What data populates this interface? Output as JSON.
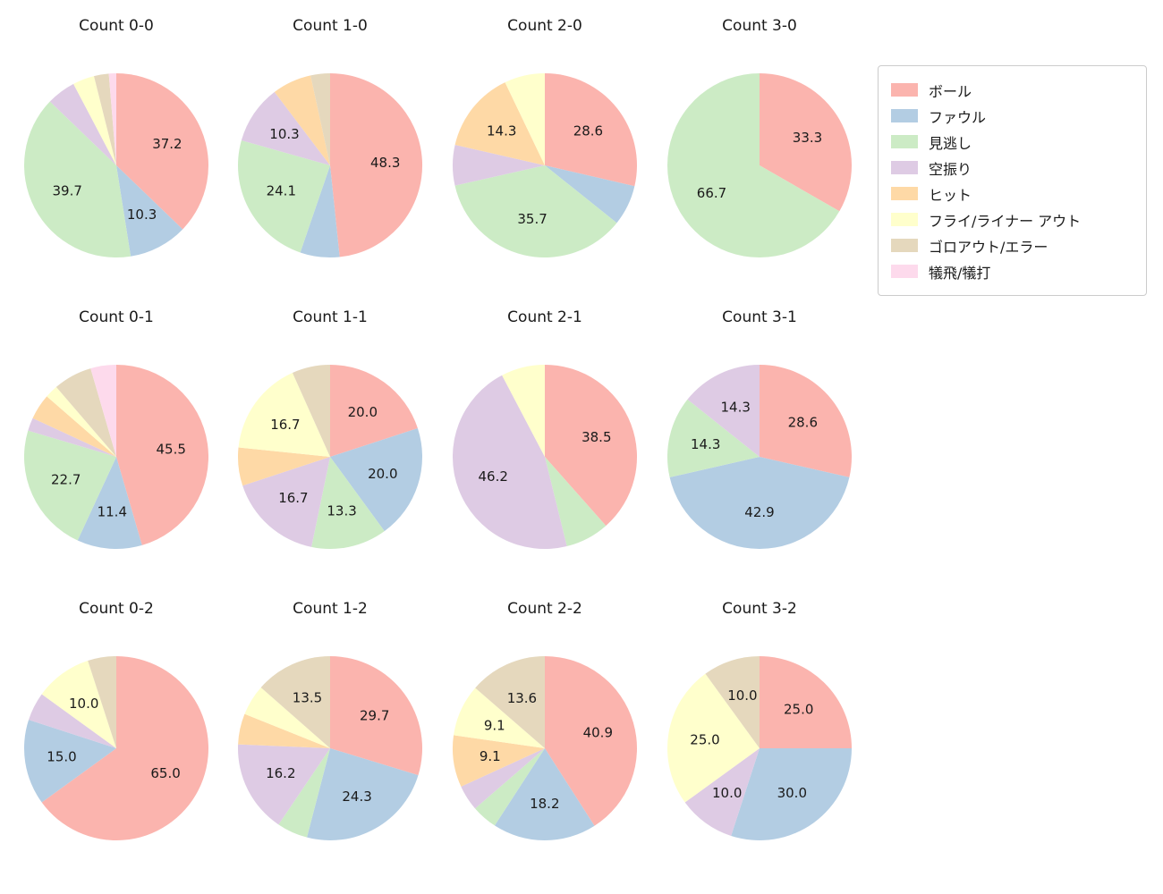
{
  "page": {
    "background": "#ffffff",
    "text_color": "#1a1a1a"
  },
  "legend": {
    "position": "top-right",
    "items": [
      {
        "label": "ボール",
        "color": "#fbb4ae"
      },
      {
        "label": "ファウル",
        "color": "#b3cde3"
      },
      {
        "label": "見逃し",
        "color": "#ccebc5"
      },
      {
        "label": "空振り",
        "color": "#decbe4"
      },
      {
        "label": "ヒット",
        "color": "#fed9a6"
      },
      {
        "label": "フライ/ライナー アウト",
        "color": "#ffffcc"
      },
      {
        "label": "ゴロアウト/エラー",
        "color": "#e5d8bd"
      },
      {
        "label": "犠飛/犠打",
        "color": "#fddaec"
      }
    ]
  },
  "chart_data": {
    "type": "pie",
    "grid": {
      "rows": 3,
      "cols": 4
    },
    "start_angle": "12-o-clock",
    "direction": "clockwise",
    "unit": "percent",
    "percent_label_min": 9,
    "percent_label_decimals": 1,
    "categories": [
      "ボール",
      "ファウル",
      "見逃し",
      "空振り",
      "ヒット",
      "フライ/ライナー アウト",
      "ゴロアウト/エラー",
      "犠飛/犠打"
    ],
    "colors": [
      "#fbb4ae",
      "#b3cde3",
      "#ccebc5",
      "#decbe4",
      "#fed9a6",
      "#ffffcc",
      "#e5d8bd",
      "#fddaec"
    ],
    "charts": [
      {
        "title": "Count 0-0",
        "values": [
          37.2,
          10.3,
          39.7,
          5.1,
          0,
          3.8,
          2.6,
          1.3
        ]
      },
      {
        "title": "Count 1-0",
        "values": [
          48.3,
          6.9,
          24.1,
          10.3,
          6.9,
          0,
          3.4,
          0
        ]
      },
      {
        "title": "Count 2-0",
        "values": [
          28.6,
          7.1,
          35.7,
          7.1,
          14.3,
          7.1,
          0,
          0
        ]
      },
      {
        "title": "Count 3-0",
        "values": [
          33.3,
          0,
          66.7,
          0,
          0,
          0,
          0,
          0
        ]
      },
      {
        "title": "Count 0-1",
        "values": [
          45.5,
          11.4,
          22.7,
          2.3,
          4.5,
          2.3,
          6.8,
          4.5
        ]
      },
      {
        "title": "Count 1-1",
        "values": [
          20.0,
          20.0,
          13.3,
          16.7,
          6.7,
          16.7,
          6.7,
          0
        ]
      },
      {
        "title": "Count 2-1",
        "values": [
          38.5,
          0,
          7.7,
          46.2,
          0,
          7.7,
          0,
          0
        ]
      },
      {
        "title": "Count 3-1",
        "values": [
          28.6,
          42.9,
          14.3,
          14.3,
          0,
          0,
          0,
          0
        ]
      },
      {
        "title": "Count 0-2",
        "values": [
          65.0,
          15.0,
          0,
          5.0,
          0,
          10.0,
          5.0,
          0
        ]
      },
      {
        "title": "Count 1-2",
        "values": [
          29.7,
          24.3,
          5.4,
          16.2,
          5.4,
          5.4,
          13.5,
          0
        ]
      },
      {
        "title": "Count 2-2",
        "values": [
          40.9,
          18.2,
          4.5,
          4.5,
          9.1,
          9.1,
          13.6,
          0
        ]
      },
      {
        "title": "Count 3-2",
        "values": [
          25.0,
          30.0,
          0,
          10.0,
          0,
          25.0,
          10.0,
          0
        ]
      }
    ]
  }
}
